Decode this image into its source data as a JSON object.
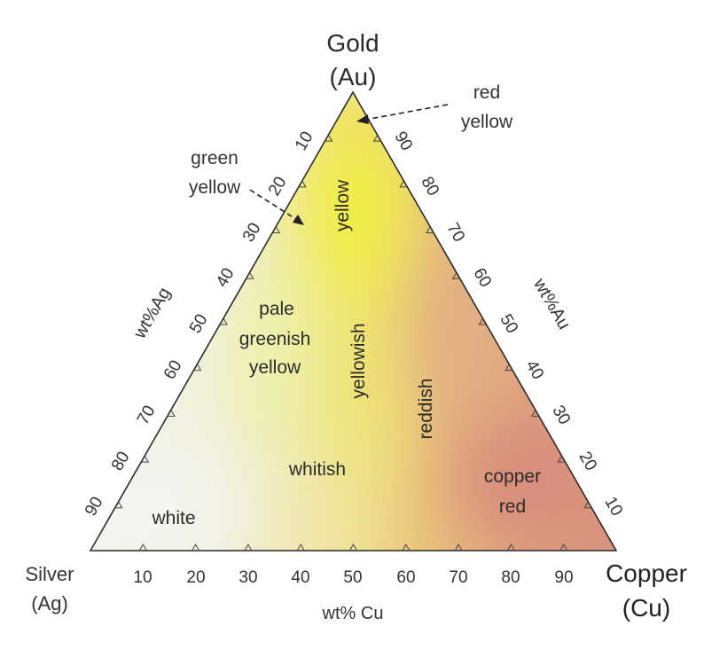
{
  "vertices": {
    "gold": {
      "line1": "Gold",
      "line2": "(Au)"
    },
    "silver": {
      "line1": "Silver",
      "line2": "(Ag)"
    },
    "copper": {
      "line1": "Copper",
      "line2": "(Cu)"
    }
  },
  "axes": {
    "cu": {
      "title": "wt% Cu",
      "ticks": [
        "10",
        "20",
        "30",
        "40",
        "50",
        "60",
        "70",
        "80",
        "90"
      ]
    },
    "ag": {
      "title": "wt%Ag",
      "ticks": [
        "10",
        "20",
        "30",
        "40",
        "50",
        "60",
        "70",
        "80",
        "90"
      ]
    },
    "au": {
      "title": "wt%Au",
      "ticks": [
        "90",
        "80",
        "70",
        "60",
        "50",
        "40",
        "30",
        "20",
        "10"
      ]
    }
  },
  "regions": {
    "yellow": "yellow",
    "pale_line1": "pale",
    "pale_line2": "greenish",
    "pale_line3": "yellow",
    "yellowish": "yellowish",
    "reddish": "reddish",
    "whitish": "whitish",
    "white": "white",
    "copper_red_line1": "copper",
    "copper_red_line2": "red"
  },
  "callouts": {
    "red_yellow": {
      "line1": "red",
      "line2": "yellow"
    },
    "green_yellow": {
      "line1": "green",
      "line2": "yellow"
    }
  },
  "colors": {
    "white_region": "#f5f5f2",
    "pale_yellow": "#eef0b8",
    "yellow": "#f2ee4a",
    "yellowish": "#eedd6a",
    "reddish": "#e0a36a",
    "copper_red": "#d9937c",
    "outline": "#2a2a2a"
  }
}
